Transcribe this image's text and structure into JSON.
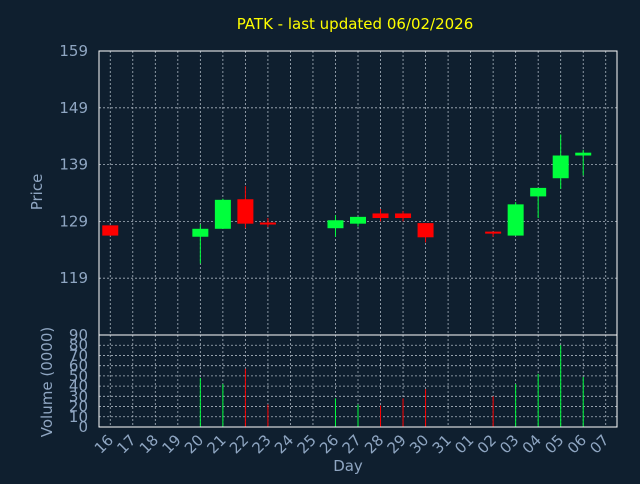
{
  "title": "PATK - last updated 06/02/2026",
  "colors": {
    "background": "#0f1f2f",
    "axis": "#ffffff",
    "grid": "#a9b4bf",
    "title": "#ffff00",
    "label": "#8fa6c2",
    "up": "#00ff3c",
    "down": "#ff0000"
  },
  "chart_data": [
    {
      "type": "candlestick",
      "title": "PATK - last updated 06/02/2026",
      "xlabel": "Day",
      "ylabel": "Price",
      "ylim": [
        109,
        159
      ],
      "yticks": [
        119,
        129,
        139,
        149,
        159
      ],
      "grid": true,
      "categories": [
        "16",
        "17",
        "18",
        "19",
        "20",
        "21",
        "22",
        "23",
        "24",
        "25",
        "26",
        "27",
        "28",
        "29",
        "30",
        "31",
        "01",
        "02",
        "03",
        "04",
        "05",
        "06",
        "07"
      ],
      "candles": [
        {
          "day": "16",
          "open": 128.3,
          "high": 128.3,
          "low": 126.5,
          "close": 126.5
        },
        {
          "day": "20",
          "open": 126.3,
          "high": 128.5,
          "low": 121.6,
          "close": 127.7
        },
        {
          "day": "21",
          "open": 127.7,
          "high": 133.0,
          "low": 127.7,
          "close": 132.8
        },
        {
          "day": "22",
          "open": 132.9,
          "high": 135.2,
          "low": 127.8,
          "close": 128.6
        },
        {
          "day": "23",
          "open": 128.8,
          "high": 129.6,
          "low": 128.0,
          "close": 128.5
        },
        {
          "day": "26",
          "open": 127.8,
          "high": 130.1,
          "low": 126.3,
          "close": 129.2
        },
        {
          "day": "27",
          "open": 128.6,
          "high": 129.8,
          "low": 128.1,
          "close": 129.8
        },
        {
          "day": "28",
          "open": 130.4,
          "high": 131.2,
          "low": 129.0,
          "close": 129.6
        },
        {
          "day": "29",
          "open": 130.4,
          "high": 130.8,
          "low": 129.0,
          "close": 129.6
        },
        {
          "day": "30",
          "open": 128.7,
          "high": 128.7,
          "low": 125.3,
          "close": 126.2
        },
        {
          "day": "02",
          "open": 127.2,
          "high": 127.2,
          "low": 126.3,
          "close": 126.9
        },
        {
          "day": "03",
          "open": 126.5,
          "high": 132.4,
          "low": 126.5,
          "close": 132.0
        },
        {
          "day": "04",
          "open": 133.4,
          "high": 134.9,
          "low": 129.6,
          "close": 134.9
        },
        {
          "day": "05",
          "open": 136.6,
          "high": 144.3,
          "low": 134.7,
          "close": 140.6
        },
        {
          "day": "06",
          "open": 140.6,
          "high": 141.6,
          "low": 137.1,
          "close": 141.1
        }
      ]
    },
    {
      "type": "bar",
      "xlabel": "Day",
      "ylabel": "Volume (0000)",
      "ylim": [
        0,
        90
      ],
      "yticks": [
        0,
        10,
        20,
        30,
        40,
        50,
        60,
        70,
        80
      ],
      "grid": true,
      "categories": [
        "16",
        "17",
        "18",
        "19",
        "20",
        "21",
        "22",
        "23",
        "24",
        "25",
        "26",
        "27",
        "28",
        "29",
        "30",
        "31",
        "01",
        "02",
        "03",
        "04",
        "05",
        "06",
        "07"
      ],
      "values": [
        {
          "day": "20",
          "volume": 48,
          "direction": "up"
        },
        {
          "day": "21",
          "volume": 42,
          "direction": "up"
        },
        {
          "day": "22",
          "volume": 57,
          "direction": "down"
        },
        {
          "day": "23",
          "volume": 22,
          "direction": "down"
        },
        {
          "day": "26",
          "volume": 28,
          "direction": "up"
        },
        {
          "day": "27",
          "volume": 22,
          "direction": "up"
        },
        {
          "day": "28",
          "volume": 21,
          "direction": "down"
        },
        {
          "day": "29",
          "volume": 28,
          "direction": "down"
        },
        {
          "day": "30",
          "volume": 37,
          "direction": "down"
        },
        {
          "day": "02",
          "volume": 30,
          "direction": "down"
        },
        {
          "day": "03",
          "volume": 42,
          "direction": "up"
        },
        {
          "day": "04",
          "volume": 52,
          "direction": "up"
        },
        {
          "day": "05",
          "volume": 80,
          "direction": "up"
        },
        {
          "day": "06",
          "volume": 49,
          "direction": "up"
        }
      ]
    }
  ]
}
